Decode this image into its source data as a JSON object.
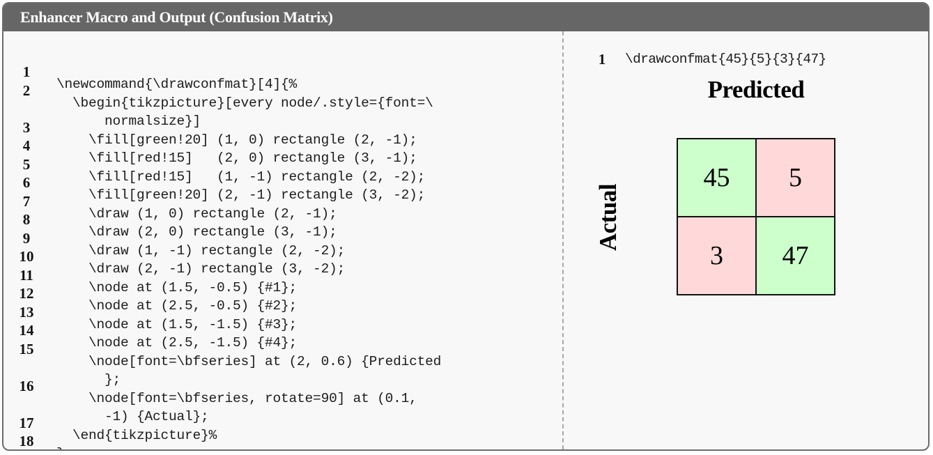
{
  "box": {
    "title": "Enhancer Macro and Output (Confusion Matrix)"
  },
  "macro_listing": {
    "lines": [
      {
        "no": "1",
        "text": "\\newcommand{\\drawconfmat}[4]{%"
      },
      {
        "no": "2",
        "text": "  \\begin{tikzpicture}[every node/.style={font=\\\n      normalsize}]"
      },
      {
        "no": "3",
        "text": "    \\fill[green!20] (1, 0) rectangle (2, -1);"
      },
      {
        "no": "4",
        "text": "    \\fill[red!15]   (2, 0) rectangle (3, -1);"
      },
      {
        "no": "5",
        "text": "    \\fill[red!15]   (1, -1) rectangle (2, -2);"
      },
      {
        "no": "6",
        "text": "    \\fill[green!20] (2, -1) rectangle (3, -2);"
      },
      {
        "no": "7",
        "text": "    \\draw (1, 0) rectangle (2, -1);"
      },
      {
        "no": "8",
        "text": "    \\draw (2, 0) rectangle (3, -1);"
      },
      {
        "no": "9",
        "text": "    \\draw (1, -1) rectangle (2, -2);"
      },
      {
        "no": "10",
        "text": "    \\draw (2, -1) rectangle (3, -2);"
      },
      {
        "no": "11",
        "text": "    \\node at (1.5, -0.5) {#1};"
      },
      {
        "no": "12",
        "text": "    \\node at (2.5, -0.5) {#2};"
      },
      {
        "no": "13",
        "text": "    \\node at (1.5, -1.5) {#3};"
      },
      {
        "no": "14",
        "text": "    \\node at (2.5, -1.5) {#4};"
      },
      {
        "no": "15",
        "text": "    \\node[font=\\bfseries] at (2, 0.6) {Predicted\n      };"
      },
      {
        "no": "16",
        "text": "    \\node[font=\\bfseries, rotate=90] at (0.1,\n      -1) {Actual};"
      },
      {
        "no": "17",
        "text": "  \\end{tikzpicture}%"
      },
      {
        "no": "18",
        "text": "}"
      }
    ]
  },
  "usage_listing": {
    "lines": [
      {
        "no": "1",
        "text": "\\drawconfmat{45}{5}{3}{47}"
      }
    ]
  },
  "output": {
    "x_label": "Predicted",
    "y_label": "Actual",
    "colors": {
      "correct_fill": "#ccffcc",
      "error_fill": "#ffd9d9",
      "grid_line": "#111111"
    },
    "cells": [
      {
        "value": "45",
        "kind": "correct"
      },
      {
        "value": "5",
        "kind": "error"
      },
      {
        "value": "3",
        "kind": "error"
      },
      {
        "value": "47",
        "kind": "correct"
      }
    ]
  }
}
